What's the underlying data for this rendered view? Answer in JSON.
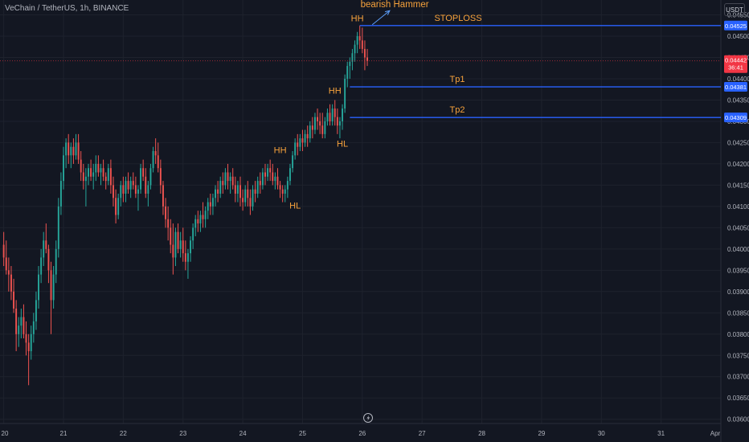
{
  "header": {
    "symbol": "VeChain / TetherUS, 1h, BINANCE",
    "currency": "USDT"
  },
  "chart_data": {
    "type": "candlestick",
    "title": "VeChain / TetherUS, 1h, BINANCE",
    "y_axis": {
      "ylim": [
        0.0359,
        0.04585
      ],
      "ticks": [
        "0.04550",
        "0.04500",
        "0.04450",
        "0.04400",
        "0.04350",
        "0.04300",
        "0.04250",
        "0.04200",
        "0.04150",
        "0.04100",
        "0.04050",
        "0.04000",
        "0.03950",
        "0.03900",
        "0.03850",
        "0.03800",
        "0.03750",
        "0.03700",
        "0.03650",
        "0.03600"
      ]
    },
    "x_axis": {
      "labels": [
        "20",
        "21",
        "22",
        "23",
        "24",
        "25",
        "26",
        "27",
        "28",
        "29",
        "30",
        "31",
        "Apr"
      ],
      "label_times": [
        0,
        24,
        48,
        72,
        96,
        120,
        144,
        168,
        192,
        216,
        240,
        264,
        288
      ],
      "xlim": [
        -1.5,
        288
      ]
    },
    "colors": {
      "up": "#26a69a",
      "down": "#ef5350",
      "level_line": "#2962ff",
      "annotation": "#f7a23b",
      "last_price_bg": "#f23645",
      "level_label_bg": "#2962ff"
    },
    "levels": [
      {
        "name": "STOPLOSS",
        "price": 0.04525,
        "label": "0.04525",
        "from_time": 143
      },
      {
        "name": "Tp1",
        "price": 0.04381,
        "label": "0.04381",
        "from_time": 139
      },
      {
        "name": "Tp2",
        "price": 0.04309,
        "label": "0.04309",
        "from_time": 139
      }
    ],
    "last_price": {
      "price": 0.04442,
      "label": "0.04442",
      "countdown": "36:41"
    },
    "annotations": [
      {
        "text": "bearish Hammer",
        "time": 157,
        "price": 0.04568
      },
      {
        "text": "HH",
        "time": 142,
        "price": 0.04535
      },
      {
        "text": "HH",
        "time": 133,
        "price": 0.04365
      },
      {
        "text": "HL",
        "time": 136,
        "price": 0.0424
      },
      {
        "text": "HH",
        "time": 111,
        "price": 0.04225
      },
      {
        "text": "HL",
        "time": 117,
        "price": 0.04095
      }
    ],
    "arrow": {
      "from": [
        148,
        0.04527
      ],
      "to": [
        155,
        0.0456
      ]
    },
    "candles": [
      {
        "t": 0,
        "o": 0.0401,
        "h": 0.0404,
        "l": 0.0396,
        "c": 0.0398
      },
      {
        "t": 1,
        "o": 0.0398,
        "h": 0.0402,
        "l": 0.0394,
        "c": 0.0395
      },
      {
        "t": 2,
        "o": 0.0395,
        "h": 0.0398,
        "l": 0.039,
        "c": 0.0394
      },
      {
        "t": 3,
        "o": 0.0394,
        "h": 0.0396,
        "l": 0.0388,
        "c": 0.039
      },
      {
        "t": 4,
        "o": 0.039,
        "h": 0.0393,
        "l": 0.0385,
        "c": 0.0386
      },
      {
        "t": 5,
        "o": 0.0386,
        "h": 0.0388,
        "l": 0.0376,
        "c": 0.038
      },
      {
        "t": 6,
        "o": 0.038,
        "h": 0.0384,
        "l": 0.0377,
        "c": 0.0382
      },
      {
        "t": 7,
        "o": 0.0382,
        "h": 0.0386,
        "l": 0.0379,
        "c": 0.0384
      },
      {
        "t": 8,
        "o": 0.0384,
        "h": 0.0387,
        "l": 0.0379,
        "c": 0.038
      },
      {
        "t": 9,
        "o": 0.038,
        "h": 0.0383,
        "l": 0.0375,
        "c": 0.0378
      },
      {
        "t": 10,
        "o": 0.0378,
        "h": 0.038,
        "l": 0.0368,
        "c": 0.0376
      },
      {
        "t": 11,
        "o": 0.0376,
        "h": 0.0382,
        "l": 0.0374,
        "c": 0.038
      },
      {
        "t": 12,
        "o": 0.038,
        "h": 0.0385,
        "l": 0.0378,
        "c": 0.0383
      },
      {
        "t": 13,
        "o": 0.0383,
        "h": 0.039,
        "l": 0.0381,
        "c": 0.0388
      },
      {
        "t": 14,
        "o": 0.0388,
        "h": 0.0396,
        "l": 0.0386,
        "c": 0.0394
      },
      {
        "t": 15,
        "o": 0.0394,
        "h": 0.04,
        "l": 0.0392,
        "c": 0.0398
      },
      {
        "t": 16,
        "o": 0.0398,
        "h": 0.0404,
        "l": 0.0396,
        "c": 0.0402
      },
      {
        "t": 17,
        "o": 0.0402,
        "h": 0.0406,
        "l": 0.0399,
        "c": 0.04
      },
      {
        "t": 18,
        "o": 0.04,
        "h": 0.0401,
        "l": 0.0392,
        "c": 0.0395
      },
      {
        "t": 19,
        "o": 0.0395,
        "h": 0.0397,
        "l": 0.038,
        "c": 0.0388
      },
      {
        "t": 20,
        "o": 0.0388,
        "h": 0.0396,
        "l": 0.0386,
        "c": 0.0394
      },
      {
        "t": 21,
        "o": 0.0394,
        "h": 0.0402,
        "l": 0.0392,
        "c": 0.04
      },
      {
        "t": 22,
        "o": 0.04,
        "h": 0.0412,
        "l": 0.0398,
        "c": 0.041
      },
      {
        "t": 23,
        "o": 0.041,
        "h": 0.0418,
        "l": 0.0408,
        "c": 0.0416
      },
      {
        "t": 24,
        "o": 0.0416,
        "h": 0.0424,
        "l": 0.0414,
        "c": 0.0422
      },
      {
        "t": 25,
        "o": 0.0422,
        "h": 0.0426,
        "l": 0.0419,
        "c": 0.0425
      },
      {
        "t": 26,
        "o": 0.0425,
        "h": 0.0427,
        "l": 0.042,
        "c": 0.0422
      },
      {
        "t": 27,
        "o": 0.0422,
        "h": 0.0425,
        "l": 0.0419,
        "c": 0.0424
      },
      {
        "t": 28,
        "o": 0.0424,
        "h": 0.0426,
        "l": 0.042,
        "c": 0.0422
      },
      {
        "t": 29,
        "o": 0.0422,
        "h": 0.0427,
        "l": 0.0421,
        "c": 0.0425
      },
      {
        "t": 30,
        "o": 0.0425,
        "h": 0.0427,
        "l": 0.042,
        "c": 0.0421
      },
      {
        "t": 31,
        "o": 0.0421,
        "h": 0.0423,
        "l": 0.0416,
        "c": 0.0418
      },
      {
        "t": 32,
        "o": 0.0418,
        "h": 0.042,
        "l": 0.0414,
        "c": 0.0416
      },
      {
        "t": 33,
        "o": 0.0416,
        "h": 0.0419,
        "l": 0.041,
        "c": 0.0417
      },
      {
        "t": 34,
        "o": 0.0417,
        "h": 0.042,
        "l": 0.0415,
        "c": 0.0419
      },
      {
        "t": 35,
        "o": 0.0419,
        "h": 0.0421,
        "l": 0.0416,
        "c": 0.0417
      },
      {
        "t": 36,
        "o": 0.0417,
        "h": 0.042,
        "l": 0.0414,
        "c": 0.0418
      },
      {
        "t": 37,
        "o": 0.0418,
        "h": 0.0422,
        "l": 0.0416,
        "c": 0.042
      },
      {
        "t": 38,
        "o": 0.042,
        "h": 0.0422,
        "l": 0.0417,
        "c": 0.0418
      },
      {
        "t": 39,
        "o": 0.0418,
        "h": 0.042,
        "l": 0.0415,
        "c": 0.0419
      },
      {
        "t": 40,
        "o": 0.0419,
        "h": 0.0421,
        "l": 0.0416,
        "c": 0.0417
      },
      {
        "t": 41,
        "o": 0.0417,
        "h": 0.0418,
        "l": 0.0414,
        "c": 0.0416
      },
      {
        "t": 42,
        "o": 0.0416,
        "h": 0.042,
        "l": 0.0415,
        "c": 0.0419
      },
      {
        "t": 43,
        "o": 0.0419,
        "h": 0.0421,
        "l": 0.0413,
        "c": 0.0415
      },
      {
        "t": 44,
        "o": 0.0415,
        "h": 0.0417,
        "l": 0.041,
        "c": 0.0412
      },
      {
        "t": 45,
        "o": 0.0412,
        "h": 0.0414,
        "l": 0.0406,
        "c": 0.0408
      },
      {
        "t": 46,
        "o": 0.0408,
        "h": 0.0413,
        "l": 0.0407,
        "c": 0.0412
      },
      {
        "t": 47,
        "o": 0.0412,
        "h": 0.0416,
        "l": 0.041,
        "c": 0.0415
      },
      {
        "t": 48,
        "o": 0.0415,
        "h": 0.0417,
        "l": 0.0411,
        "c": 0.0413
      },
      {
        "t": 49,
        "o": 0.0413,
        "h": 0.0417,
        "l": 0.0411,
        "c": 0.0416
      },
      {
        "t": 50,
        "o": 0.0416,
        "h": 0.0418,
        "l": 0.0413,
        "c": 0.0414
      },
      {
        "t": 51,
        "o": 0.0414,
        "h": 0.0417,
        "l": 0.0412,
        "c": 0.0416
      },
      {
        "t": 52,
        "o": 0.0416,
        "h": 0.0418,
        "l": 0.0414,
        "c": 0.0415
      },
      {
        "t": 53,
        "o": 0.0415,
        "h": 0.0417,
        "l": 0.0412,
        "c": 0.0413
      },
      {
        "t": 54,
        "o": 0.0413,
        "h": 0.0415,
        "l": 0.0409,
        "c": 0.0414
      },
      {
        "t": 55,
        "o": 0.0414,
        "h": 0.042,
        "l": 0.0413,
        "c": 0.0419
      },
      {
        "t": 56,
        "o": 0.0419,
        "h": 0.0421,
        "l": 0.0416,
        "c": 0.0417
      },
      {
        "t": 57,
        "o": 0.0417,
        "h": 0.0419,
        "l": 0.0412,
        "c": 0.0413
      },
      {
        "t": 58,
        "o": 0.0413,
        "h": 0.0416,
        "l": 0.041,
        "c": 0.0415
      },
      {
        "t": 59,
        "o": 0.0415,
        "h": 0.042,
        "l": 0.0414,
        "c": 0.0419
      },
      {
        "t": 60,
        "o": 0.0419,
        "h": 0.0424,
        "l": 0.0418,
        "c": 0.0423
      },
      {
        "t": 61,
        "o": 0.0423,
        "h": 0.0426,
        "l": 0.042,
        "c": 0.0422
      },
      {
        "t": 62,
        "o": 0.0422,
        "h": 0.0425,
        "l": 0.0418,
        "c": 0.0419
      },
      {
        "t": 63,
        "o": 0.0419,
        "h": 0.0421,
        "l": 0.0413,
        "c": 0.0415
      },
      {
        "t": 64,
        "o": 0.0415,
        "h": 0.0416,
        "l": 0.0408,
        "c": 0.041
      },
      {
        "t": 65,
        "o": 0.041,
        "h": 0.0412,
        "l": 0.0405,
        "c": 0.0407
      },
      {
        "t": 66,
        "o": 0.0407,
        "h": 0.041,
        "l": 0.0402,
        "c": 0.0405
      },
      {
        "t": 67,
        "o": 0.0405,
        "h": 0.0407,
        "l": 0.0399,
        "c": 0.0401
      },
      {
        "t": 68,
        "o": 0.0401,
        "h": 0.0406,
        "l": 0.0394,
        "c": 0.0398
      },
      {
        "t": 69,
        "o": 0.0398,
        "h": 0.0405,
        "l": 0.0396,
        "c": 0.0404
      },
      {
        "t": 70,
        "o": 0.0404,
        "h": 0.0406,
        "l": 0.0399,
        "c": 0.04
      },
      {
        "t": 71,
        "o": 0.04,
        "h": 0.0404,
        "l": 0.0398,
        "c": 0.0402
      },
      {
        "t": 72,
        "o": 0.0402,
        "h": 0.0405,
        "l": 0.0397,
        "c": 0.0399
      },
      {
        "t": 73,
        "o": 0.0399,
        "h": 0.0402,
        "l": 0.0395,
        "c": 0.0397
      },
      {
        "t": 74,
        "o": 0.0397,
        "h": 0.04,
        "l": 0.0393,
        "c": 0.0399
      },
      {
        "t": 75,
        "o": 0.0399,
        "h": 0.0403,
        "l": 0.0397,
        "c": 0.0402
      },
      {
        "t": 76,
        "o": 0.0402,
        "h": 0.0406,
        "l": 0.04,
        "c": 0.0405
      },
      {
        "t": 77,
        "o": 0.0405,
        "h": 0.0408,
        "l": 0.0403,
        "c": 0.0407
      },
      {
        "t": 78,
        "o": 0.0407,
        "h": 0.0409,
        "l": 0.0404,
        "c": 0.0406
      },
      {
        "t": 79,
        "o": 0.0406,
        "h": 0.0409,
        "l": 0.0404,
        "c": 0.0408
      },
      {
        "t": 80,
        "o": 0.0408,
        "h": 0.0411,
        "l": 0.0405,
        "c": 0.0407
      },
      {
        "t": 81,
        "o": 0.0407,
        "h": 0.041,
        "l": 0.0405,
        "c": 0.0409
      },
      {
        "t": 82,
        "o": 0.0409,
        "h": 0.0412,
        "l": 0.0407,
        "c": 0.0411
      },
      {
        "t": 83,
        "o": 0.0411,
        "h": 0.0413,
        "l": 0.0408,
        "c": 0.041
      },
      {
        "t": 84,
        "o": 0.041,
        "h": 0.0413,
        "l": 0.0408,
        "c": 0.0412
      },
      {
        "t": 85,
        "o": 0.0412,
        "h": 0.0415,
        "l": 0.041,
        "c": 0.0414
      },
      {
        "t": 86,
        "o": 0.0414,
        "h": 0.0416,
        "l": 0.0411,
        "c": 0.0413
      },
      {
        "t": 87,
        "o": 0.0413,
        "h": 0.0417,
        "l": 0.0412,
        "c": 0.0416
      },
      {
        "t": 88,
        "o": 0.0416,
        "h": 0.0418,
        "l": 0.0413,
        "c": 0.0415
      },
      {
        "t": 89,
        "o": 0.0415,
        "h": 0.0419,
        "l": 0.0414,
        "c": 0.0418
      },
      {
        "t": 90,
        "o": 0.0418,
        "h": 0.042,
        "l": 0.0414,
        "c": 0.0416
      },
      {
        "t": 91,
        "o": 0.0416,
        "h": 0.0418,
        "l": 0.0413,
        "c": 0.0417
      },
      {
        "t": 92,
        "o": 0.0417,
        "h": 0.0419,
        "l": 0.0414,
        "c": 0.0415
      },
      {
        "t": 93,
        "o": 0.0415,
        "h": 0.0417,
        "l": 0.0411,
        "c": 0.0413
      },
      {
        "t": 94,
        "o": 0.0413,
        "h": 0.0416,
        "l": 0.0411,
        "c": 0.0415
      },
      {
        "t": 95,
        "o": 0.0415,
        "h": 0.0417,
        "l": 0.041,
        "c": 0.0412
      },
      {
        "t": 96,
        "o": 0.0412,
        "h": 0.0414,
        "l": 0.0409,
        "c": 0.0411
      },
      {
        "t": 97,
        "o": 0.0411,
        "h": 0.0415,
        "l": 0.041,
        "c": 0.0414
      },
      {
        "t": 98,
        "o": 0.0414,
        "h": 0.0416,
        "l": 0.041,
        "c": 0.0412
      },
      {
        "t": 99,
        "o": 0.0412,
        "h": 0.0414,
        "l": 0.0408,
        "c": 0.041
      },
      {
        "t": 100,
        "o": 0.041,
        "h": 0.0415,
        "l": 0.0409,
        "c": 0.0414
      },
      {
        "t": 101,
        "o": 0.0414,
        "h": 0.0416,
        "l": 0.0411,
        "c": 0.0413
      },
      {
        "t": 102,
        "o": 0.0413,
        "h": 0.0417,
        "l": 0.0412,
        "c": 0.0416
      },
      {
        "t": 103,
        "o": 0.0416,
        "h": 0.0418,
        "l": 0.0413,
        "c": 0.0415
      },
      {
        "t": 104,
        "o": 0.0415,
        "h": 0.0419,
        "l": 0.0414,
        "c": 0.0418
      },
      {
        "t": 105,
        "o": 0.0418,
        "h": 0.042,
        "l": 0.0415,
        "c": 0.0417
      },
      {
        "t": 106,
        "o": 0.0417,
        "h": 0.042,
        "l": 0.0416,
        "c": 0.0419
      },
      {
        "t": 107,
        "o": 0.0419,
        "h": 0.0421,
        "l": 0.0416,
        "c": 0.0418
      },
      {
        "t": 108,
        "o": 0.0418,
        "h": 0.042,
        "l": 0.0415,
        "c": 0.0416
      },
      {
        "t": 109,
        "o": 0.0416,
        "h": 0.0418,
        "l": 0.0414,
        "c": 0.0417
      },
      {
        "t": 110,
        "o": 0.0417,
        "h": 0.0419,
        "l": 0.0414,
        "c": 0.0415
      },
      {
        "t": 111,
        "o": 0.0415,
        "h": 0.0416,
        "l": 0.0412,
        "c": 0.0414
      },
      {
        "t": 112,
        "o": 0.0414,
        "h": 0.0415,
        "l": 0.0411,
        "c": 0.0413
      },
      {
        "t": 113,
        "o": 0.0413,
        "h": 0.0415,
        "l": 0.0411,
        "c": 0.0414
      },
      {
        "t": 114,
        "o": 0.0414,
        "h": 0.0417,
        "l": 0.0412,
        "c": 0.0416
      },
      {
        "t": 115,
        "o": 0.0416,
        "h": 0.042,
        "l": 0.0415,
        "c": 0.0419
      },
      {
        "t": 116,
        "o": 0.0419,
        "h": 0.0423,
        "l": 0.0418,
        "c": 0.0422
      },
      {
        "t": 117,
        "o": 0.0422,
        "h": 0.0426,
        "l": 0.0421,
        "c": 0.0425
      },
      {
        "t": 118,
        "o": 0.0425,
        "h": 0.0427,
        "l": 0.0422,
        "c": 0.0424
      },
      {
        "t": 119,
        "o": 0.0424,
        "h": 0.0427,
        "l": 0.0423,
        "c": 0.0426
      },
      {
        "t": 120,
        "o": 0.0426,
        "h": 0.0428,
        "l": 0.0423,
        "c": 0.0425
      },
      {
        "t": 121,
        "o": 0.0425,
        "h": 0.0428,
        "l": 0.0424,
        "c": 0.0427
      },
      {
        "t": 122,
        "o": 0.0427,
        "h": 0.0429,
        "l": 0.0424,
        "c": 0.0426
      },
      {
        "t": 123,
        "o": 0.0426,
        "h": 0.043,
        "l": 0.0425,
        "c": 0.0429
      },
      {
        "t": 124,
        "o": 0.0429,
        "h": 0.0431,
        "l": 0.0426,
        "c": 0.0428
      },
      {
        "t": 125,
        "o": 0.0428,
        "h": 0.0432,
        "l": 0.0427,
        "c": 0.0431
      },
      {
        "t": 126,
        "o": 0.0431,
        "h": 0.0433,
        "l": 0.0428,
        "c": 0.043
      },
      {
        "t": 127,
        "o": 0.043,
        "h": 0.0432,
        "l": 0.0427,
        "c": 0.0429
      },
      {
        "t": 128,
        "o": 0.0429,
        "h": 0.0432,
        "l": 0.0426,
        "c": 0.0427
      },
      {
        "t": 129,
        "o": 0.0427,
        "h": 0.0431,
        "l": 0.0426,
        "c": 0.043
      },
      {
        "t": 130,
        "o": 0.043,
        "h": 0.0433,
        "l": 0.0429,
        "c": 0.0432
      },
      {
        "t": 131,
        "o": 0.0432,
        "h": 0.0434,
        "l": 0.0429,
        "c": 0.043
      },
      {
        "t": 132,
        "o": 0.043,
        "h": 0.0434,
        "l": 0.0429,
        "c": 0.0433
      },
      {
        "t": 133,
        "o": 0.0433,
        "h": 0.0435,
        "l": 0.0429,
        "c": 0.0431
      },
      {
        "t": 134,
        "o": 0.0431,
        "h": 0.0433,
        "l": 0.0427,
        "c": 0.0429
      },
      {
        "t": 135,
        "o": 0.0429,
        "h": 0.0431,
        "l": 0.0426,
        "c": 0.043
      },
      {
        "t": 136,
        "o": 0.043,
        "h": 0.0434,
        "l": 0.0428,
        "c": 0.0433
      },
      {
        "t": 137,
        "o": 0.0433,
        "h": 0.0441,
        "l": 0.0432,
        "c": 0.044
      },
      {
        "t": 138,
        "o": 0.044,
        "h": 0.0444,
        "l": 0.0438,
        "c": 0.0443
      },
      {
        "t": 139,
        "o": 0.0443,
        "h": 0.0445,
        "l": 0.044,
        "c": 0.0444
      },
      {
        "t": 140,
        "o": 0.0444,
        "h": 0.0447,
        "l": 0.0442,
        "c": 0.0446
      },
      {
        "t": 141,
        "o": 0.0446,
        "h": 0.0449,
        "l": 0.0444,
        "c": 0.0448
      },
      {
        "t": 142,
        "o": 0.0448,
        "h": 0.0451,
        "l": 0.0446,
        "c": 0.045
      },
      {
        "t": 143,
        "o": 0.045,
        "h": 0.04525,
        "l": 0.0447,
        "c": 0.0449
      },
      {
        "t": 144,
        "o": 0.0449,
        "h": 0.0452,
        "l": 0.0446,
        "c": 0.0447
      },
      {
        "t": 145,
        "o": 0.0447,
        "h": 0.0449,
        "l": 0.0442,
        "c": 0.0445
      },
      {
        "t": 146,
        "o": 0.0445,
        "h": 0.0447,
        "l": 0.0443,
        "c": 0.04442
      }
    ]
  }
}
